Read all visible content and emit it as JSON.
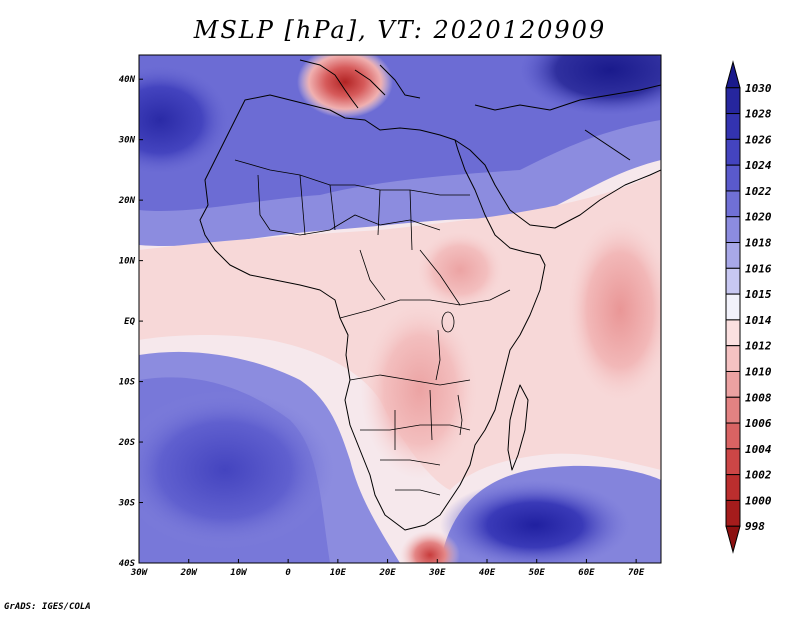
{
  "title": "MSLP [hPa], VT: 2020120909",
  "footer": "GrADS: IGES/COLA",
  "axes": {
    "lon_labels": [
      "30W",
      "20W",
      "10W",
      "0",
      "10E",
      "20E",
      "30E",
      "40E",
      "50E",
      "60E",
      "70E"
    ],
    "lon_values": [
      -30,
      -20,
      -10,
      0,
      10,
      20,
      30,
      40,
      50,
      60,
      70
    ],
    "lat_labels": [
      "40N",
      "30N",
      "20N",
      "10N",
      "EQ",
      "10S",
      "20S",
      "30S",
      "40S"
    ],
    "lat_values": [
      40,
      30,
      20,
      10,
      0,
      -10,
      -20,
      -30,
      -40
    ],
    "lon_range": [
      -30,
      75
    ],
    "lat_range": [
      -40,
      44
    ]
  },
  "colorbar": {
    "levels": [
      "1030",
      "1028",
      "1026",
      "1024",
      "1022",
      "1020",
      "1018",
      "1016",
      "1015",
      "1014",
      "1012",
      "1010",
      "1008",
      "1006",
      "1004",
      "1002",
      "1000",
      "998"
    ],
    "colors": [
      "#1a1a8c",
      "#26269e",
      "#3333b0",
      "#4444bf",
      "#5a5acc",
      "#7070d6",
      "#8c8cdf",
      "#a8a8e8",
      "#c8c8f2",
      "#f2f2fb",
      "#fbe0e0",
      "#f5c2c2",
      "#eca2a2",
      "#e38282",
      "#d96363",
      "#cc4646",
      "#bb2e2e",
      "#a51c1c",
      "#8c1010"
    ]
  },
  "chart_data": {
    "type": "heatmap",
    "title": "MSLP [hPa], VT: 2020120909",
    "variable": "MSLP",
    "units": "hPa",
    "valid_time": "2020120909",
    "xlabel": "",
    "ylabel": "",
    "x_range": [
      -30,
      75
    ],
    "y_range": [
      -40,
      44
    ],
    "features": [
      {
        "name": "subtropical high (Atlantic)",
        "lon": -28,
        "lat": 33,
        "value": 1026
      },
      {
        "name": "high (South Atlantic)",
        "lon": -15,
        "lat": -25,
        "value": 1024
      },
      {
        "name": "high (South Indian Ocean)",
        "lon": 47,
        "lat": -35,
        "value": 1026
      },
      {
        "name": "high (Asia)",
        "lon": 68,
        "lat": 42,
        "value": 1028
      },
      {
        "name": "low (Italy)",
        "lon": 14,
        "lat": 41,
        "value": 1004
      },
      {
        "name": "low (South Africa coast)",
        "lon": 28,
        "lat": -40,
        "value": 1004
      },
      {
        "name": "low (Arabian Sea)",
        "lon": 66,
        "lat": 9,
        "value": 1008
      }
    ]
  }
}
